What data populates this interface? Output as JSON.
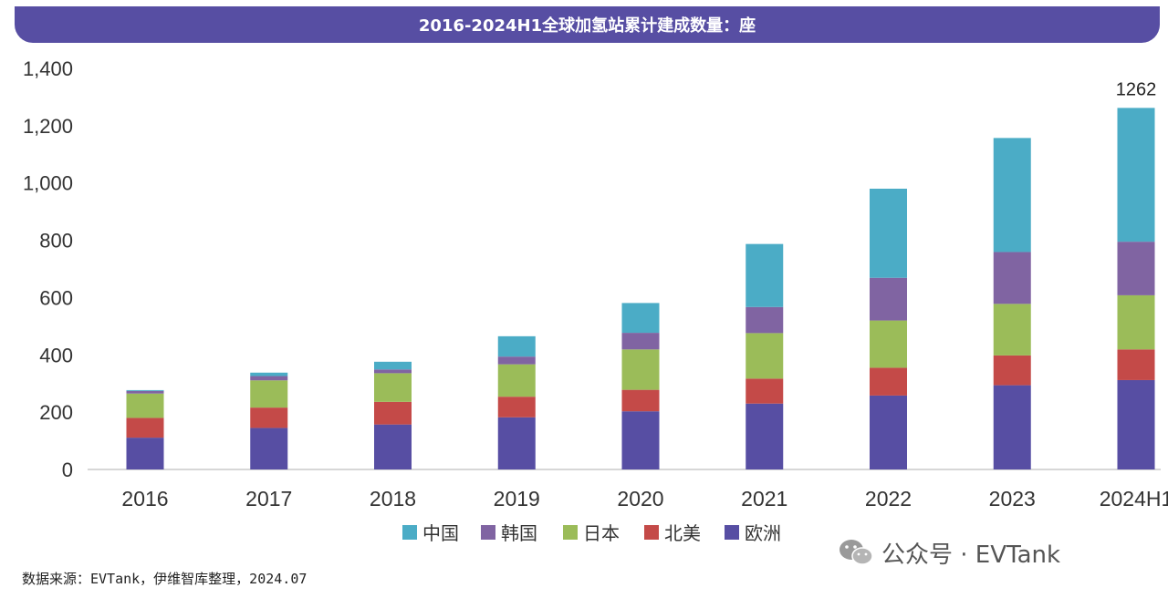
{
  "chart_data": {
    "type": "bar",
    "stacked": true,
    "title": "2016-2024H1全球加氢站累计建成数量：座",
    "categories": [
      "2016",
      "2017",
      "2018",
      "2019",
      "2020",
      "2021",
      "2022",
      "2023",
      "2024H1"
    ],
    "series": [
      {
        "name": "欧洲",
        "color": "#574ea3",
        "values": [
          111,
          145,
          157,
          182,
          203,
          230,
          258,
          294,
          312
        ]
      },
      {
        "name": "北美",
        "color": "#c44a48",
        "values": [
          69,
          71,
          79,
          72,
          75,
          87,
          97,
          104,
          107
        ]
      },
      {
        "name": "日本",
        "color": "#9bbc59",
        "values": [
          85,
          95,
          100,
          113,
          141,
          159,
          165,
          180,
          189
        ]
      },
      {
        "name": "韩国",
        "color": "#8064a2",
        "values": [
          9,
          15,
          13,
          27,
          58,
          91,
          149,
          181,
          187
        ]
      },
      {
        "name": "中国",
        "color": "#4bacc6",
        "values": [
          3,
          12,
          27,
          71,
          104,
          220,
          311,
          398,
          467
        ]
      }
    ],
    "yticks": [
      "0",
      "200",
      "400",
      "600",
      "800",
      "1,000",
      "1,200",
      "1,400"
    ],
    "ylim": [
      0,
      1400
    ],
    "annotations": [
      {
        "category": "2024H1",
        "label": "1262"
      }
    ],
    "legend_order": [
      "中国",
      "韩国",
      "日本",
      "北美",
      "欧洲"
    ],
    "legend_position": "bottom",
    "grid": false
  },
  "source_text": "数据来源：EVTank，伊维智库整理，2024.07",
  "watermark": "公众号 · EVTank"
}
